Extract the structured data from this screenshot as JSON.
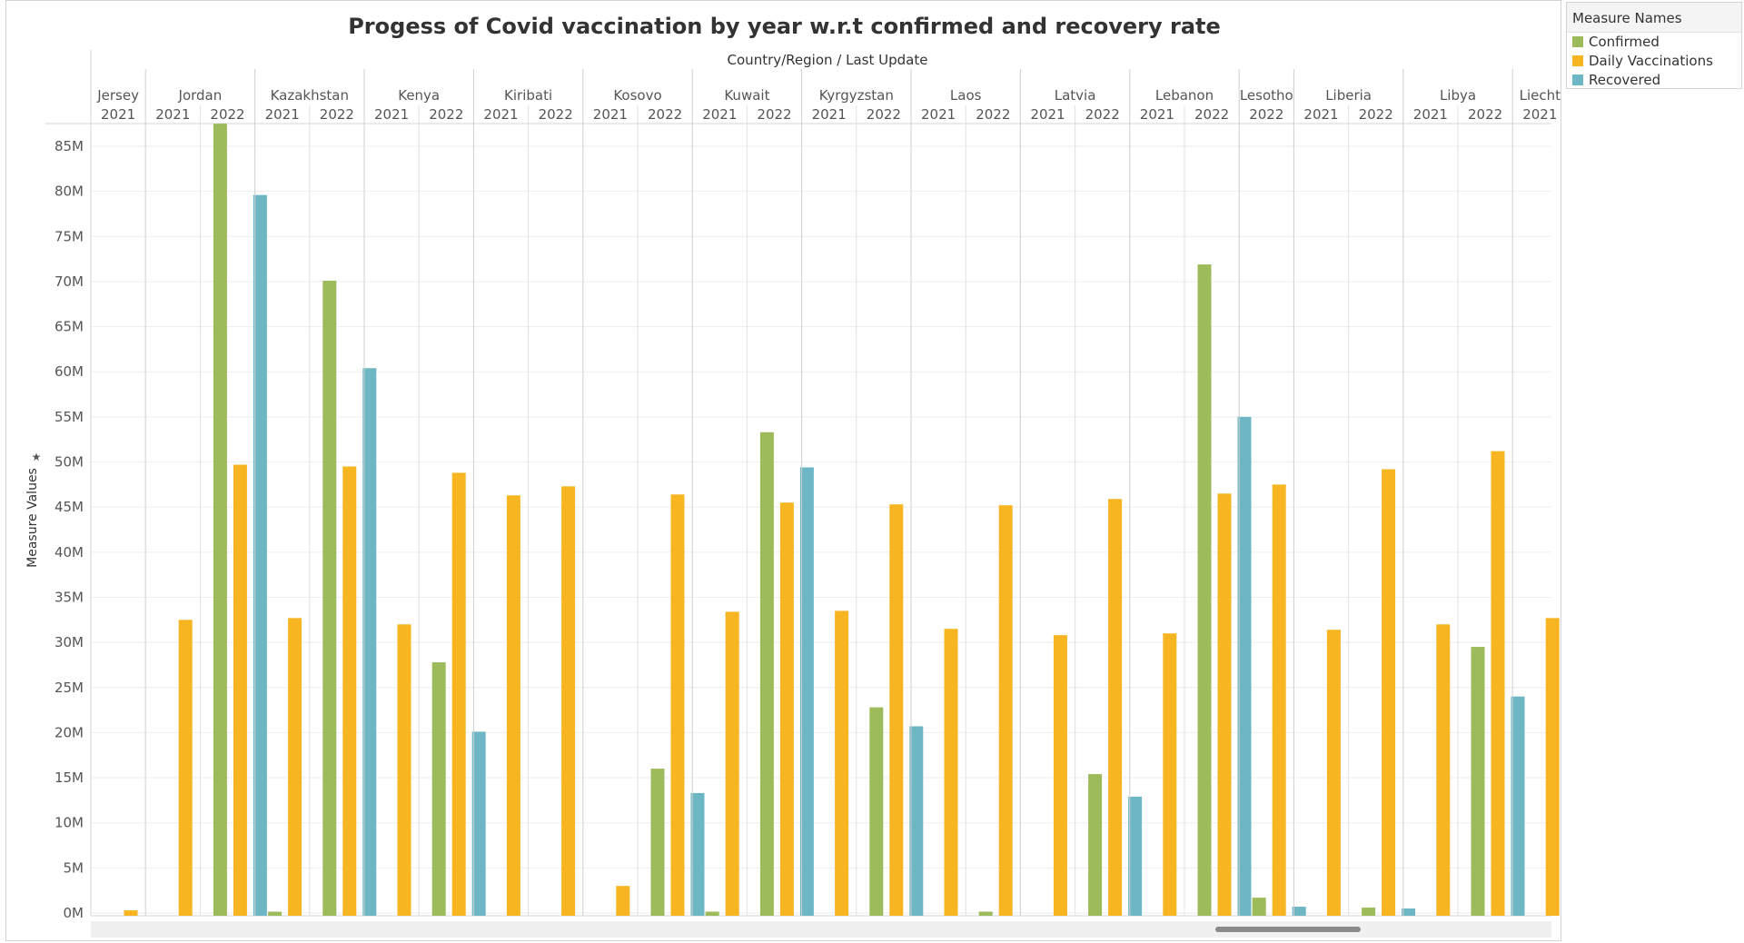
{
  "title": "Progess of Covid vaccination by year w.r.t confirmed and recovery rate",
  "header_title": "Country/Region  /  Last Update",
  "legend": {
    "title": "Measure Names",
    "items": [
      {
        "label": "Confirmed",
        "color": "#9dbb5a"
      },
      {
        "label": "Daily Vaccinations",
        "color": "#f7b521"
      },
      {
        "label": "Recovered",
        "color": "#6db6c4"
      }
    ]
  },
  "chart_data": {
    "type": "bar",
    "title": "Progess of Covid vaccination by year w.r.t confirmed and recovery rate",
    "xlabel": "Country/Region  /  Last Update",
    "ylabel": "Measure Values",
    "ylim": [
      0,
      87
    ],
    "y_unit": "M",
    "y_ticks": [
      "0M",
      "5M",
      "10M",
      "15M",
      "20M",
      "25M",
      "30M",
      "35M",
      "40M",
      "45M",
      "50M",
      "55M",
      "60M",
      "65M",
      "70M",
      "75M",
      "80M",
      "85M"
    ],
    "series_names": [
      "Confirmed",
      "Daily Vaccinations",
      "Recovered"
    ],
    "colors": [
      "#9dbb5a",
      "#f7b521",
      "#6db6c4"
    ],
    "groups": [
      {
        "country": "Jersey",
        "years": [
          {
            "year": "2021",
            "values": [
              null,
              0.3,
              null
            ]
          }
        ]
      },
      {
        "country": "Jordan",
        "years": [
          {
            "year": "2021",
            "values": [
              null,
              32.5,
              null
            ]
          },
          {
            "year": "2022",
            "values": [
              87.5,
              49.7,
              79.6
            ]
          }
        ]
      },
      {
        "country": "Kazakhstan",
        "years": [
          {
            "year": "2021",
            "values": [
              0.1,
              32.7,
              null
            ]
          },
          {
            "year": "2022",
            "values": [
              70.1,
              49.5,
              60.4
            ]
          }
        ]
      },
      {
        "country": "Kenya",
        "years": [
          {
            "year": "2021",
            "values": [
              null,
              32.0,
              null
            ]
          },
          {
            "year": "2022",
            "values": [
              27.8,
              48.8,
              20.1
            ]
          }
        ]
      },
      {
        "country": "Kiribati",
        "years": [
          {
            "year": "2021",
            "values": [
              null,
              46.3,
              null
            ]
          },
          {
            "year": "2022",
            "values": [
              null,
              47.3,
              null
            ]
          }
        ]
      },
      {
        "country": "Kosovo",
        "years": [
          {
            "year": "2021",
            "values": [
              null,
              3.0,
              null
            ]
          },
          {
            "year": "2022",
            "values": [
              16.0,
              46.4,
              13.3
            ]
          }
        ]
      },
      {
        "country": "Kuwait",
        "years": [
          {
            "year": "2021",
            "values": [
              0.1,
              33.4,
              null
            ]
          },
          {
            "year": "2022",
            "values": [
              53.3,
              45.5,
              49.4
            ]
          }
        ]
      },
      {
        "country": "Kyrgyzstan",
        "years": [
          {
            "year": "2021",
            "values": [
              null,
              33.5,
              null
            ]
          },
          {
            "year": "2022",
            "values": [
              22.8,
              45.3,
              20.7
            ]
          }
        ]
      },
      {
        "country": "Laos",
        "years": [
          {
            "year": "2021",
            "values": [
              null,
              31.5,
              null
            ]
          },
          {
            "year": "2022",
            "values": [
              0.1,
              45.2,
              null
            ]
          }
        ]
      },
      {
        "country": "Latvia",
        "years": [
          {
            "year": "2021",
            "values": [
              null,
              30.8,
              null
            ]
          },
          {
            "year": "2022",
            "values": [
              15.4,
              45.9,
              12.9
            ]
          }
        ]
      },
      {
        "country": "Lebanon",
        "years": [
          {
            "year": "2021",
            "values": [
              null,
              31.0,
              null
            ]
          },
          {
            "year": "2022",
            "values": [
              71.9,
              46.5,
              55.0
            ]
          }
        ]
      },
      {
        "country": "Lesotho",
        "years": [
          {
            "year": "2022",
            "values": [
              1.7,
              47.5,
              0.7
            ]
          }
        ]
      },
      {
        "country": "Liberia",
        "years": [
          {
            "year": "2021",
            "values": [
              null,
              31.4,
              null
            ]
          },
          {
            "year": "2022",
            "values": [
              0.6,
              49.2,
              0.5
            ]
          }
        ]
      },
      {
        "country": "Libya",
        "years": [
          {
            "year": "2021",
            "values": [
              null,
              32.0,
              null
            ]
          },
          {
            "year": "2022",
            "values": [
              29.5,
              51.2,
              24.0
            ]
          }
        ]
      },
      {
        "country": "Liecht",
        "years": [
          {
            "year": "2021",
            "values": [
              null,
              32.7,
              null
            ]
          }
        ]
      }
    ]
  }
}
